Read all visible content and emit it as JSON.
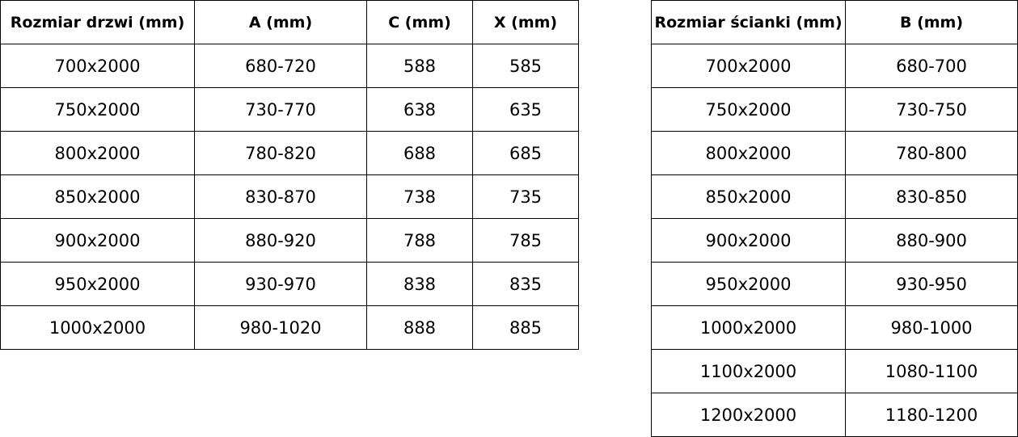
{
  "door_table": {
    "headers": [
      "Rozmiar drzwi (mm)",
      "A (mm)",
      "C (mm)",
      "X (mm)"
    ],
    "rows": [
      [
        "700x2000",
        "680-720",
        "588",
        "585"
      ],
      [
        "750x2000",
        "730-770",
        "638",
        "635"
      ],
      [
        "800x2000",
        "780-820",
        "688",
        "685"
      ],
      [
        "850x2000",
        "830-870",
        "738",
        "735"
      ],
      [
        "900x2000",
        "880-920",
        "788",
        "785"
      ],
      [
        "950x2000",
        "930-970",
        "838",
        "835"
      ],
      [
        "1000x2000",
        "980-1020",
        "888",
        "885"
      ]
    ]
  },
  "wall_table": {
    "headers": [
      "Rozmiar ścianki (mm)",
      "B (mm)"
    ],
    "rows": [
      [
        "700x2000",
        "680-700"
      ],
      [
        "750x2000",
        "730-750"
      ],
      [
        "800x2000",
        "780-800"
      ],
      [
        "850x2000",
        "830-850"
      ],
      [
        "900x2000",
        "880-900"
      ],
      [
        "950x2000",
        "930-950"
      ],
      [
        "1000x2000",
        "980-1000"
      ],
      [
        "1100x2000",
        "1080-1100"
      ],
      [
        "1200x2000",
        "1180-1200"
      ]
    ]
  }
}
